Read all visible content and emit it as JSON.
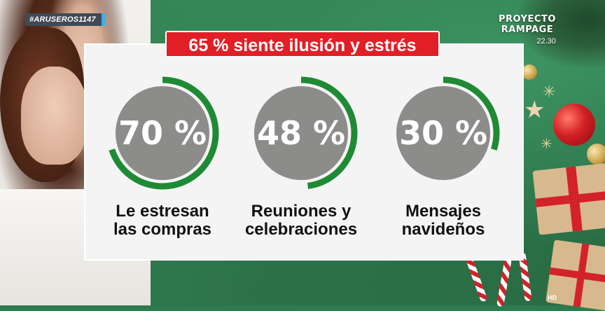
{
  "overlay": {
    "hashtag": "#ARUSEROS1147",
    "channel_logo_line1": "PROYECTO",
    "channel_logo_line2": "RAMPAGE",
    "time": "22.30",
    "hd": "HD"
  },
  "infographic": {
    "headline": "65 % siente ilusión y estrés",
    "stats": [
      {
        "value": 70,
        "value_text": "70 %",
        "label_line1": "Le estresan",
        "label_line2": "las compras"
      },
      {
        "value": 48,
        "value_text": "48 %",
        "label_line1": "Reuniones y",
        "label_line2": "celebraciones"
      },
      {
        "value": 30,
        "value_text": "30 %",
        "label_line1": "Mensajes",
        "label_line2": "navideños"
      }
    ]
  },
  "colors": {
    "arc": "#1e8a34",
    "circle": "#8c8c8a",
    "headline_bg": "#e21f26"
  },
  "icons": {
    "decorations": [
      "ornament-icon",
      "gift-icon",
      "candy-cane-icon",
      "star-icon",
      "snowflake-icon"
    ]
  }
}
